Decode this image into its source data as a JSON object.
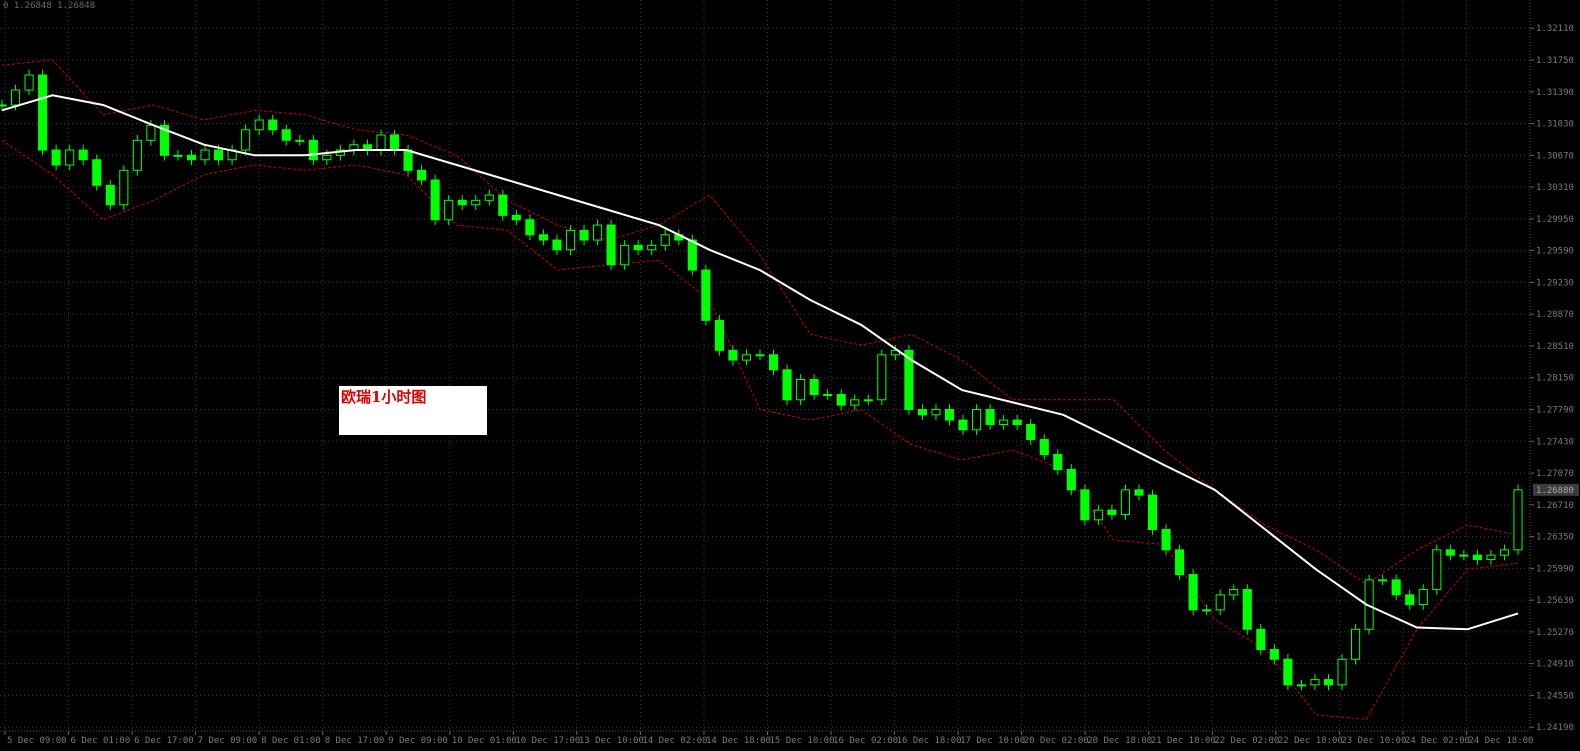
{
  "header": {
    "info_text": "0 1.26848 1.26848"
  },
  "annotation": {
    "label": "欧瑞1小时图"
  },
  "colors": {
    "background": "#000000",
    "candles": "#00ff00",
    "moving_average": "#ffffff",
    "bands": "#cc0000",
    "grid": "#3a3a3a",
    "axis_text": "#7a7a7a",
    "annotation_text": "#e00000",
    "annotation_bg": "#ffffff"
  },
  "chart_data": {
    "type": "line",
    "subtype": "candlestick-with-indicators",
    "title": "",
    "xlabel": "",
    "ylabel": "",
    "ylim": [
      1.24,
      1.3243
    ],
    "grid": true,
    "y_ticks": [
      "1.32110",
      "1.31750",
      "1.31390",
      "1.31030",
      "1.30670",
      "1.30310",
      "1.29950",
      "1.29590",
      "1.29230",
      "1.28870",
      "1.28510",
      "1.28150",
      "1.27790",
      "1.27430",
      "1.27070",
      "1.26710",
      "1.26350",
      "1.25990",
      "1.25630",
      "1.25270",
      "1.24910",
      "1.24550",
      "1.24190"
    ],
    "x_ticks": [
      "5 Dec 09:00",
      "6 Dec 01:00",
      "6 Dec 17:00",
      "7 Dec 09:00",
      "8 Dec 01:00",
      "8 Dec 17:00",
      "9 Dec 09:00",
      "10 Dec 01:00",
      "10 Dec 17:00",
      "13 Dec 10:00",
      "14 Dec 02:00",
      "14 Dec 18:00",
      "15 Dec 10:00",
      "16 Dec 02:00",
      "16 Dec 18:00",
      "17 Dec 10:00",
      "20 Dec 02:00",
      "20 Dec 18:00",
      "21 Dec 10:00",
      "22 Dec 02:00",
      "22 Dec 18:00",
      "23 Dec 10:00",
      "24 Dec 02:00",
      "24 Dec 18:00"
    ],
    "current_price": {
      "value": 1.2688,
      "label": "1.26880"
    },
    "series": [
      {
        "kind": "close",
        "values": [
          1.3124,
          1.3141,
          1.3158,
          1.3073,
          1.3056,
          1.3073,
          1.3062,
          1.3033,
          1.3011,
          1.305,
          1.3084,
          1.3101,
          1.3067,
          1.3067,
          1.3062,
          1.3073,
          1.3062,
          1.3073,
          1.3096,
          1.3107,
          1.3096,
          1.3084,
          1.3084,
          1.3062,
          1.3067,
          1.3073,
          1.3079,
          1.3073,
          1.309,
          1.3073,
          1.305,
          1.3039,
          1.2994,
          1.3016,
          1.3011,
          1.3016,
          1.3022,
          1.2999,
          1.2994,
          1.2977,
          1.2971,
          1.296,
          1.2982,
          1.2971,
          1.2988,
          1.2943,
          1.2965,
          1.296,
          1.2965,
          1.2977,
          1.2971,
          1.2937,
          1.288,
          1.2846,
          1.2835,
          1.2841,
          1.2841,
          1.2824,
          1.279,
          1.2813,
          1.2796,
          1.2796,
          1.2784,
          1.279,
          1.279,
          1.2841,
          1.2846,
          1.2779,
          1.2773,
          1.2779,
          1.2767,
          1.2756,
          1.2779,
          1.2762,
          1.2767,
          1.2762,
          1.2745,
          1.2728,
          1.2711,
          1.2688,
          1.2654,
          1.2665,
          1.266,
          1.2688,
          1.2682,
          1.2643,
          1.262,
          1.2592,
          1.2552,
          1.2552,
          1.2569,
          1.2575,
          1.253,
          1.2507,
          1.2496,
          1.2467,
          1.2467,
          1.2473,
          1.2467,
          1.2496,
          1.253,
          1.2586,
          1.2586,
          1.2569,
          1.2558,
          1.2575,
          1.262,
          1.2614,
          1.2614,
          1.2609,
          1.2614,
          1.262,
          1.2688
        ]
      },
      {
        "kind": "moving_average",
        "values": [
          1.3118,
          1.3135,
          1.3124,
          1.3101,
          1.3079,
          1.3067,
          1.3067,
          1.3073,
          1.3073,
          1.3056,
          1.3039,
          1.3022,
          1.3005,
          1.2988,
          1.296,
          1.2937,
          1.2903,
          1.2875,
          1.2835,
          1.2801,
          1.2787,
          1.2773,
          1.2745,
          1.2716,
          1.2688,
          1.2643,
          1.2598,
          1.2558,
          1.2532,
          1.253,
          1.2548
        ]
      },
      {
        "kind": "band_upper",
        "values": [
          1.3169,
          1.3175,
          1.3113,
          1.3124,
          1.3107,
          1.3118,
          1.3113,
          1.3096,
          1.309,
          1.3067,
          1.3016,
          1.2988,
          1.2971,
          1.2988,
          1.3022,
          1.2954,
          1.2864,
          1.2852,
          1.2864,
          1.2835,
          1.279,
          1.279,
          1.279,
          1.2733,
          1.2688,
          1.2648,
          1.262,
          1.2581,
          1.262,
          1.2648,
          1.2637
        ]
      },
      {
        "kind": "band_lower",
        "values": [
          1.3084,
          1.3045,
          1.2994,
          1.3016,
          1.3045,
          1.3056,
          1.305,
          1.3056,
          1.3045,
          1.2988,
          1.2982,
          1.2937,
          1.2943,
          1.2948,
          1.2903,
          1.2779,
          1.2767,
          1.2779,
          1.2739,
          1.2722,
          1.2733,
          1.2711,
          1.2631,
          1.2626,
          1.2541,
          1.2507,
          1.2433,
          1.2428,
          1.253,
          1.2598,
          1.2605
        ]
      }
    ]
  }
}
